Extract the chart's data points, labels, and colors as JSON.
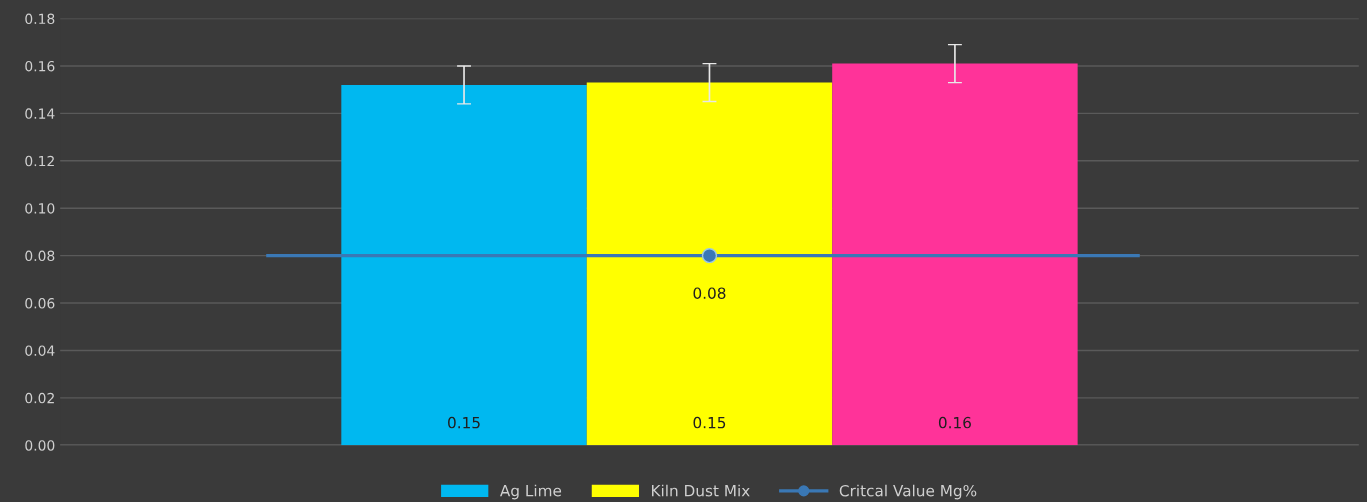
{
  "chart_data": {
    "type": "bar",
    "categories": [
      null
    ],
    "series": [
      {
        "name": "Ag Lime",
        "color": "#00b8f0",
        "values": [
          0.152
        ],
        "errors": [
          0.008
        ],
        "value_labels": [
          "0.15"
        ]
      },
      {
        "name": "Kiln Dust Mix",
        "color": "#ffff00",
        "values": [
          0.153
        ],
        "errors": [
          0.008
        ],
        "value_labels": [
          "0.15"
        ]
      },
      {
        "color": "#ff3399",
        "values": [
          0.161
        ],
        "errors": [
          0.008
        ],
        "value_labels": [
          "0.16"
        ]
      },
      {
        "name": "Critcal Value Mg%",
        "type": "line",
        "color": "#3a78b5",
        "values": [
          0.08
        ],
        "marker": "circle",
        "value_labels": [
          "0.08"
        ]
      }
    ],
    "ylim": [
      0,
      0.18
    ],
    "yticks": [
      {
        "value": 0,
        "label": "0.00"
      },
      {
        "value": 0.02,
        "label": "0.02"
      },
      {
        "value": 0.04,
        "label": "0.04"
      },
      {
        "value": 0.06,
        "label": "0.06"
      },
      {
        "value": 0.08,
        "label": "0.08"
      },
      {
        "value": 0.1,
        "label": "0.10"
      },
      {
        "value": 0.12,
        "label": "0.12"
      },
      {
        "value": 0.14,
        "label": "0.14"
      },
      {
        "value": 0.16,
        "label": "0.16"
      },
      {
        "value": 0.18,
        "label": "0.18"
      }
    ],
    "ref_lines": [
      {
        "axis": "y",
        "value": 0.08,
        "color": "#3a78b5"
      }
    ],
    "grid": "y",
    "legend": "bottom"
  }
}
